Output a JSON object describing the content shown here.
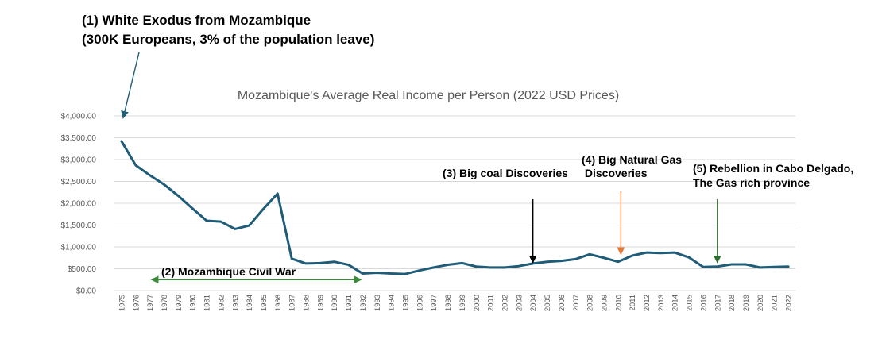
{
  "colors": {
    "series": "#1f5c78",
    "grid": "#d9d9d9",
    "text": "#595959",
    "annotation_blue": "#1f5c78",
    "annotation_green": "#3a8a3a",
    "annotation_black": "#000000",
    "annotation_orange": "#e0793a",
    "annotation_darkgreen": "#2e6b2e"
  },
  "annotations": [
    {
      "id": "ann-1",
      "lines": [
        "(1) White Exodus from Mozambique",
        "(300K Europeans, 3% of the population leave)"
      ],
      "arrow_year": 1975,
      "arrow_value": 3950,
      "color": "annotation_blue"
    },
    {
      "id": "ann-2",
      "lines": [
        "(2) Mozambique Civil War"
      ],
      "span_years": [
        1977,
        1992
      ],
      "arrow_value": 250,
      "color": "annotation_green"
    },
    {
      "id": "ann-3",
      "lines": [
        "(3) Big coal Discoveries"
      ],
      "arrow_year": 2004,
      "arrow_value": 640,
      "color": "annotation_black"
    },
    {
      "id": "ann-4",
      "lines": [
        "(4) Big Natural Gas",
        " Discoveries"
      ],
      "arrow_year": 2010.2,
      "arrow_value": 830,
      "color": "annotation_orange"
    },
    {
      "id": "ann-5",
      "lines": [
        "(5) Rebellion in Cabo Delgado,",
        "The Gas rich province"
      ],
      "arrow_year": 2017,
      "arrow_value": 640,
      "color": "annotation_darkgreen"
    }
  ],
  "chart_data": {
    "type": "line",
    "title": "Mozambique's Average Real Income per Person (2022 USD Prices)",
    "xlabel": "",
    "ylabel": "",
    "ylim": [
      0,
      4000
    ],
    "yticks": [
      0,
      500,
      1000,
      1500,
      2000,
      2500,
      3000,
      3500,
      4000
    ],
    "ytick_labels": [
      "$0.00",
      "$500.00",
      "$1,000.00",
      "$1,500.00",
      "$2,000.00",
      "$2,500.00",
      "$3,000.00",
      "$3,500.00",
      "$4,000.00"
    ],
    "grid": true,
    "legend": "none",
    "x": [
      "1975",
      "1976",
      "1977",
      "1978",
      "1979",
      "1980",
      "1981",
      "1982",
      "1983",
      "1984",
      "1985",
      "1986",
      "1987",
      "1988",
      "1989",
      "1990",
      "1991",
      "1992",
      "1993",
      "1994",
      "1995",
      "1996",
      "1997",
      "1998",
      "1999",
      "2000",
      "2001",
      "2002",
      "2003",
      "2004",
      "2005",
      "2006",
      "2007",
      "2008",
      "2009",
      "2010",
      "2011",
      "2012",
      "2013",
      "2014",
      "2015",
      "2016",
      "2017",
      "2018",
      "2019",
      "2020",
      "2021",
      "2022"
    ],
    "series": [
      {
        "values": [
          3420,
          2870,
          2640,
          2430,
          2170,
          1880,
          1600,
          1580,
          1410,
          1490,
          1870,
          2220,
          730,
          620,
          630,
          660,
          590,
          390,
          410,
          390,
          380,
          460,
          530,
          590,
          630,
          550,
          530,
          530,
          560,
          620,
          660,
          680,
          720,
          830,
          750,
          660,
          800,
          870,
          860,
          870,
          760,
          540,
          550,
          600,
          600,
          530,
          540,
          550
        ]
      }
    ]
  }
}
